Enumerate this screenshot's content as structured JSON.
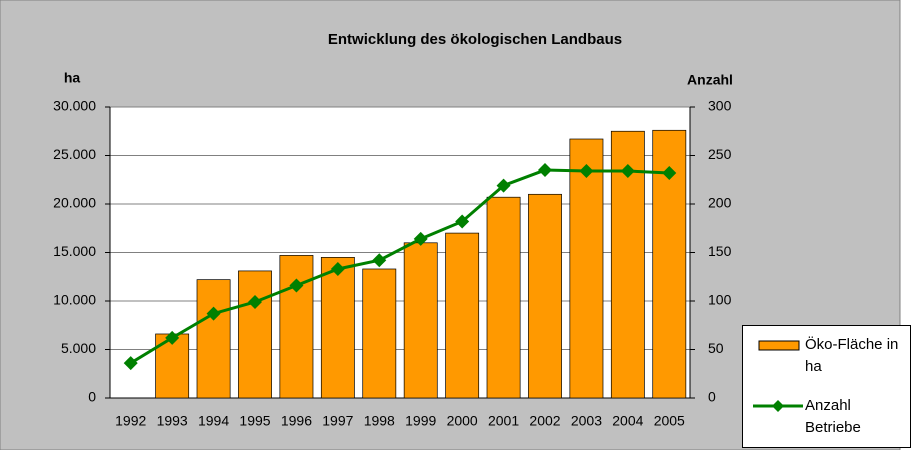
{
  "chart_data": {
    "type": "bar-line",
    "title": "Entwicklung des ökologischen Landbaus",
    "y_label": "ha",
    "y2_label": "Anzahl",
    "categories": [
      "1992",
      "1993",
      "1994",
      "1995",
      "1996",
      "1997",
      "1998",
      "1999",
      "2000",
      "2001",
      "2002",
      "2003",
      "2004",
      "2005"
    ],
    "series": [
      {
        "name": "Öko-Fläche in ha",
        "type": "bar",
        "color": "#ff9900",
        "values": [
          null,
          6600,
          12200,
          13100,
          14700,
          14500,
          13300,
          16000,
          17000,
          20700,
          21000,
          26700,
          27500,
          27600
        ]
      },
      {
        "name": "Anzahl Betriebe",
        "type": "line",
        "axis": "y2",
        "color": "#008000",
        "values": [
          36,
          62,
          87,
          99,
          116,
          133,
          142,
          164,
          182,
          219,
          235,
          234,
          234,
          232
        ]
      }
    ],
    "ylim": [
      0,
      30000
    ],
    "yticks": [
      0,
      {
        "value": 5000,
        "label": "5.000"
      },
      {
        "value": 10000,
        "label": "10.000"
      },
      {
        "value": 15000,
        "label": "15.000"
      },
      {
        "value": 20000,
        "label": "20.000"
      },
      {
        "value": 25000,
        "label": "25.000"
      },
      {
        "value": 30000,
        "label": "30.000"
      }
    ],
    "y2lim": [
      0,
      300
    ],
    "y2ticks": [
      0,
      50,
      100,
      150,
      200,
      250,
      300
    ],
    "grid": true
  }
}
